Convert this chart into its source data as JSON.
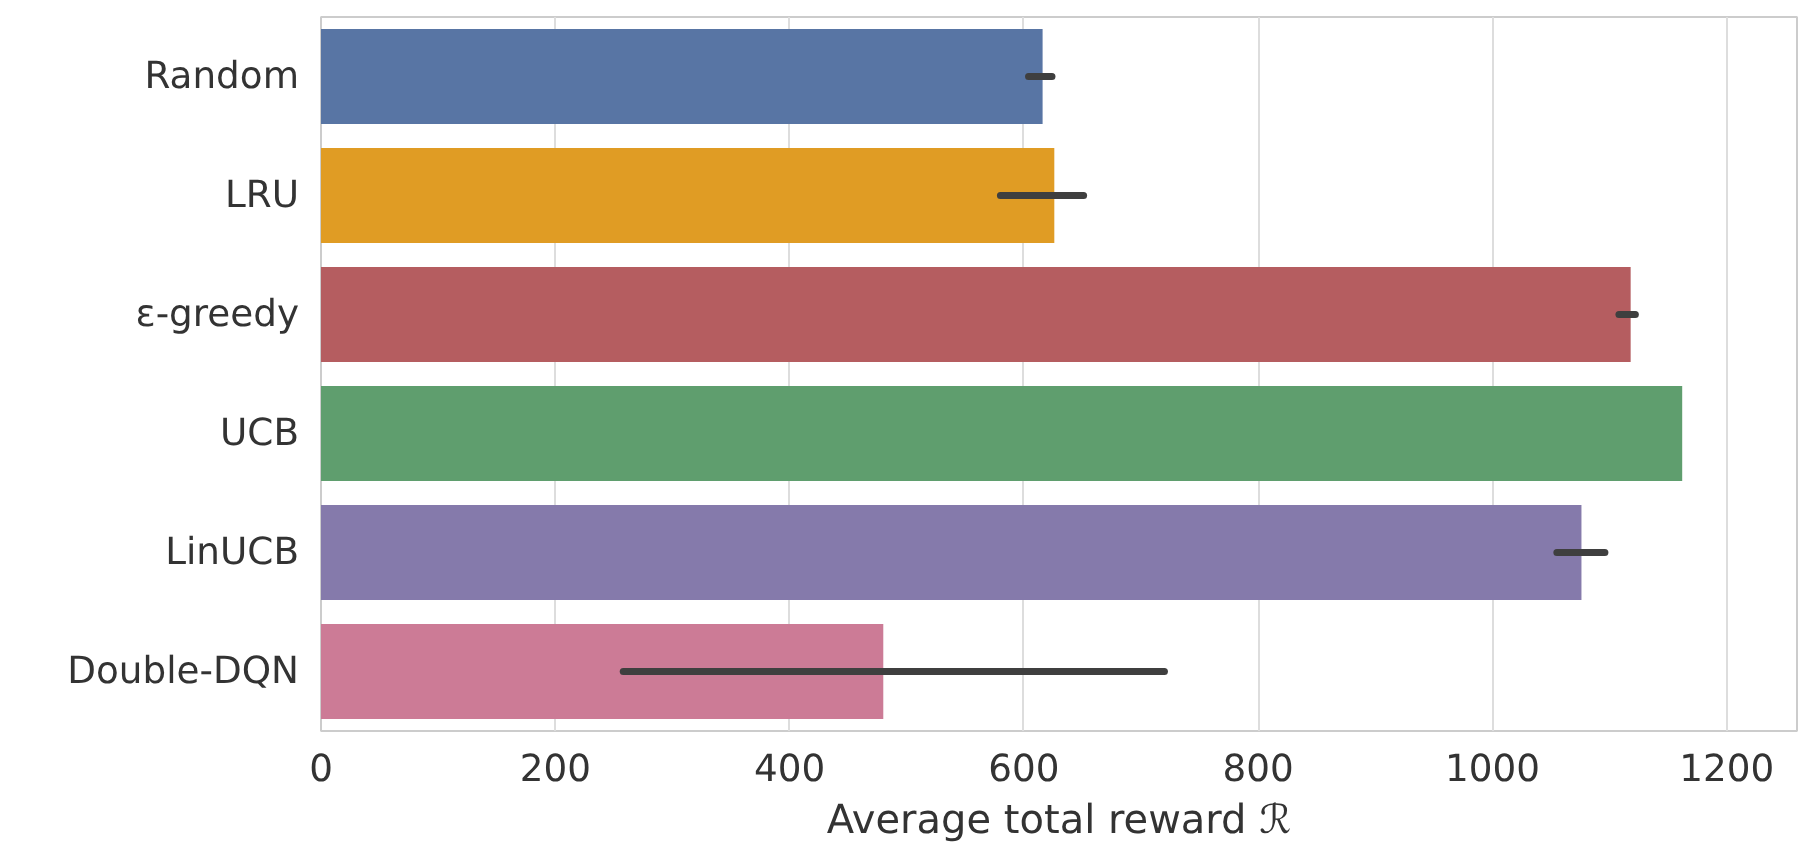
{
  "chart_data": {
    "type": "bar",
    "orientation": "horizontal",
    "xlabel": "Average total reward ℛ",
    "categories": [
      "Random",
      "LRU",
      "ε-greedy",
      "UCB",
      "LinUCB",
      "Double-DQN"
    ],
    "values": [
      616,
      626,
      1118,
      1162,
      1076,
      480
    ],
    "colors": [
      "#5875a4",
      "#e09c24",
      "#b55d60",
      "#5f9e6e",
      "#857aab",
      "#cc7b96"
    ],
    "errors": [
      [
        604,
        624
      ],
      [
        580,
        651
      ],
      [
        1108,
        1122
      ],
      null,
      [
        1055,
        1096
      ],
      [
        258,
        720
      ]
    ],
    "xlim": [
      0,
      1260
    ],
    "xticks": [
      0,
      200,
      400,
      600,
      800,
      1000,
      1200
    ],
    "grid": "x"
  }
}
